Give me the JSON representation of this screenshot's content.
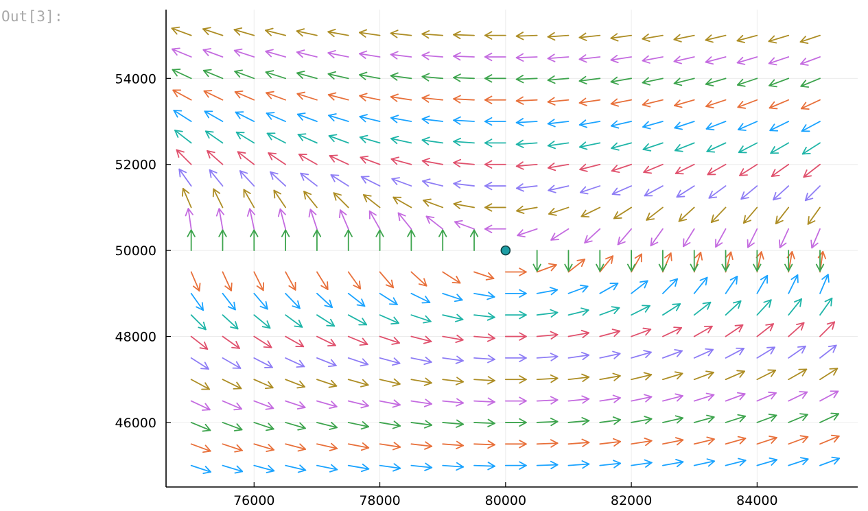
{
  "cell": {
    "output_prompt": "Out[3]:"
  },
  "chart_data": {
    "type": "quiver",
    "title": "",
    "xlabel": "",
    "ylabel": "",
    "xlim": [
      74600,
      85600
    ],
    "ylim": [
      44500,
      55600
    ],
    "xticks": [
      76000,
      78000,
      80000,
      82000,
      84000
    ],
    "yticks": [
      46000,
      48000,
      50000,
      52000,
      54000
    ],
    "xtick_labels": [
      "76000",
      "78000",
      "80000",
      "82000",
      "84000"
    ],
    "ytick_labels": [
      "46000",
      "48000",
      "50000",
      "52000",
      "54000"
    ],
    "grid": true,
    "legend": "none",
    "grid_x": {
      "start": 75000,
      "step": 500,
      "count": 21
    },
    "grid_y": {
      "start": 45000,
      "step": 500,
      "count": 21
    },
    "field": {
      "description_of_values": "Arrows originate at every grid point; arrow direction follows (x - 80000, y - 50000) rotated: below the equilibrium the flow points right, above it points left; arrows converge to a stable point.",
      "equilibrium": {
        "x": 80000,
        "y": 50000
      },
      "arrow_length_data": 330
    },
    "series_colors": [
      "#1aa3ff",
      "#e8703a",
      "#3da44d",
      "#c46be0",
      "#ad8d24",
      "#8e7df5",
      "#e0516d",
      "#1fb5a8"
    ],
    "marker": {
      "x": 80000,
      "y": 50000,
      "color": "#1e9ea5"
    }
  }
}
